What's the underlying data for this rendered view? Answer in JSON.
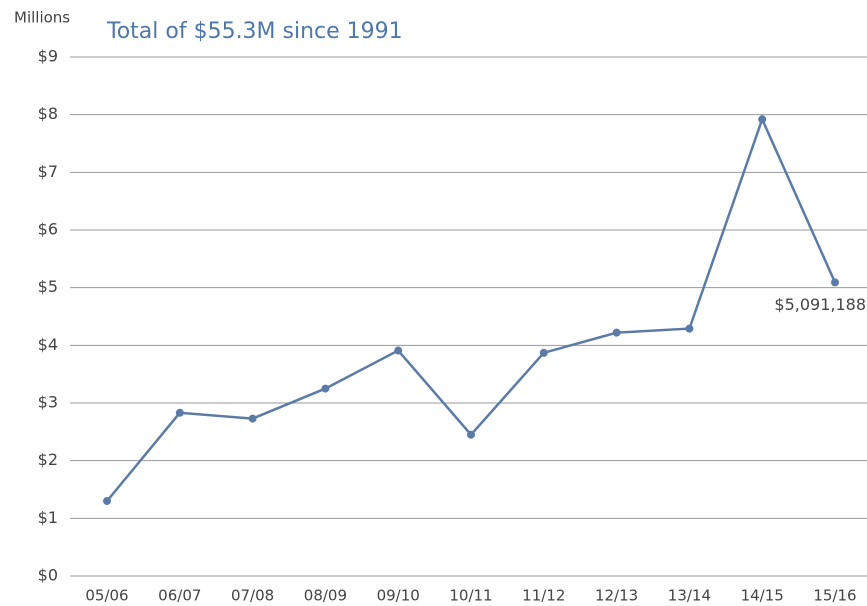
{
  "chart_data": {
    "type": "line",
    "title": "Total of $55.3M since 1991",
    "y_axis_label": "Millions",
    "categories": [
      "05/06",
      "06/07",
      "07/08",
      "08/09",
      "09/10",
      "10/11",
      "11/12",
      "12/13",
      "13/14",
      "14/15",
      "15/16"
    ],
    "series": [
      {
        "name": "Total",
        "color": "#5b7ba6",
        "values": [
          1.3,
          2.83,
          2.73,
          3.25,
          3.91,
          2.45,
          3.87,
          4.22,
          4.29,
          7.92,
          5.091188
        ],
        "value_labels": [
          null,
          null,
          null,
          null,
          null,
          null,
          null,
          null,
          null,
          null,
          "$5,091,188"
        ]
      }
    ],
    "ylim": [
      0,
      9
    ],
    "yticks": [
      {
        "value": 0,
        "label": "$0"
      },
      {
        "value": 1,
        "label": "$1"
      },
      {
        "value": 2,
        "label": "$2"
      },
      {
        "value": 3,
        "label": "$3"
      },
      {
        "value": 4,
        "label": "$4"
      },
      {
        "value": 5,
        "label": "$5"
      },
      {
        "value": 6,
        "label": "$6"
      },
      {
        "value": 7,
        "label": "$7"
      },
      {
        "value": 8,
        "label": "$8"
      },
      {
        "value": 9,
        "label": "$9"
      }
    ],
    "grid": true
  }
}
